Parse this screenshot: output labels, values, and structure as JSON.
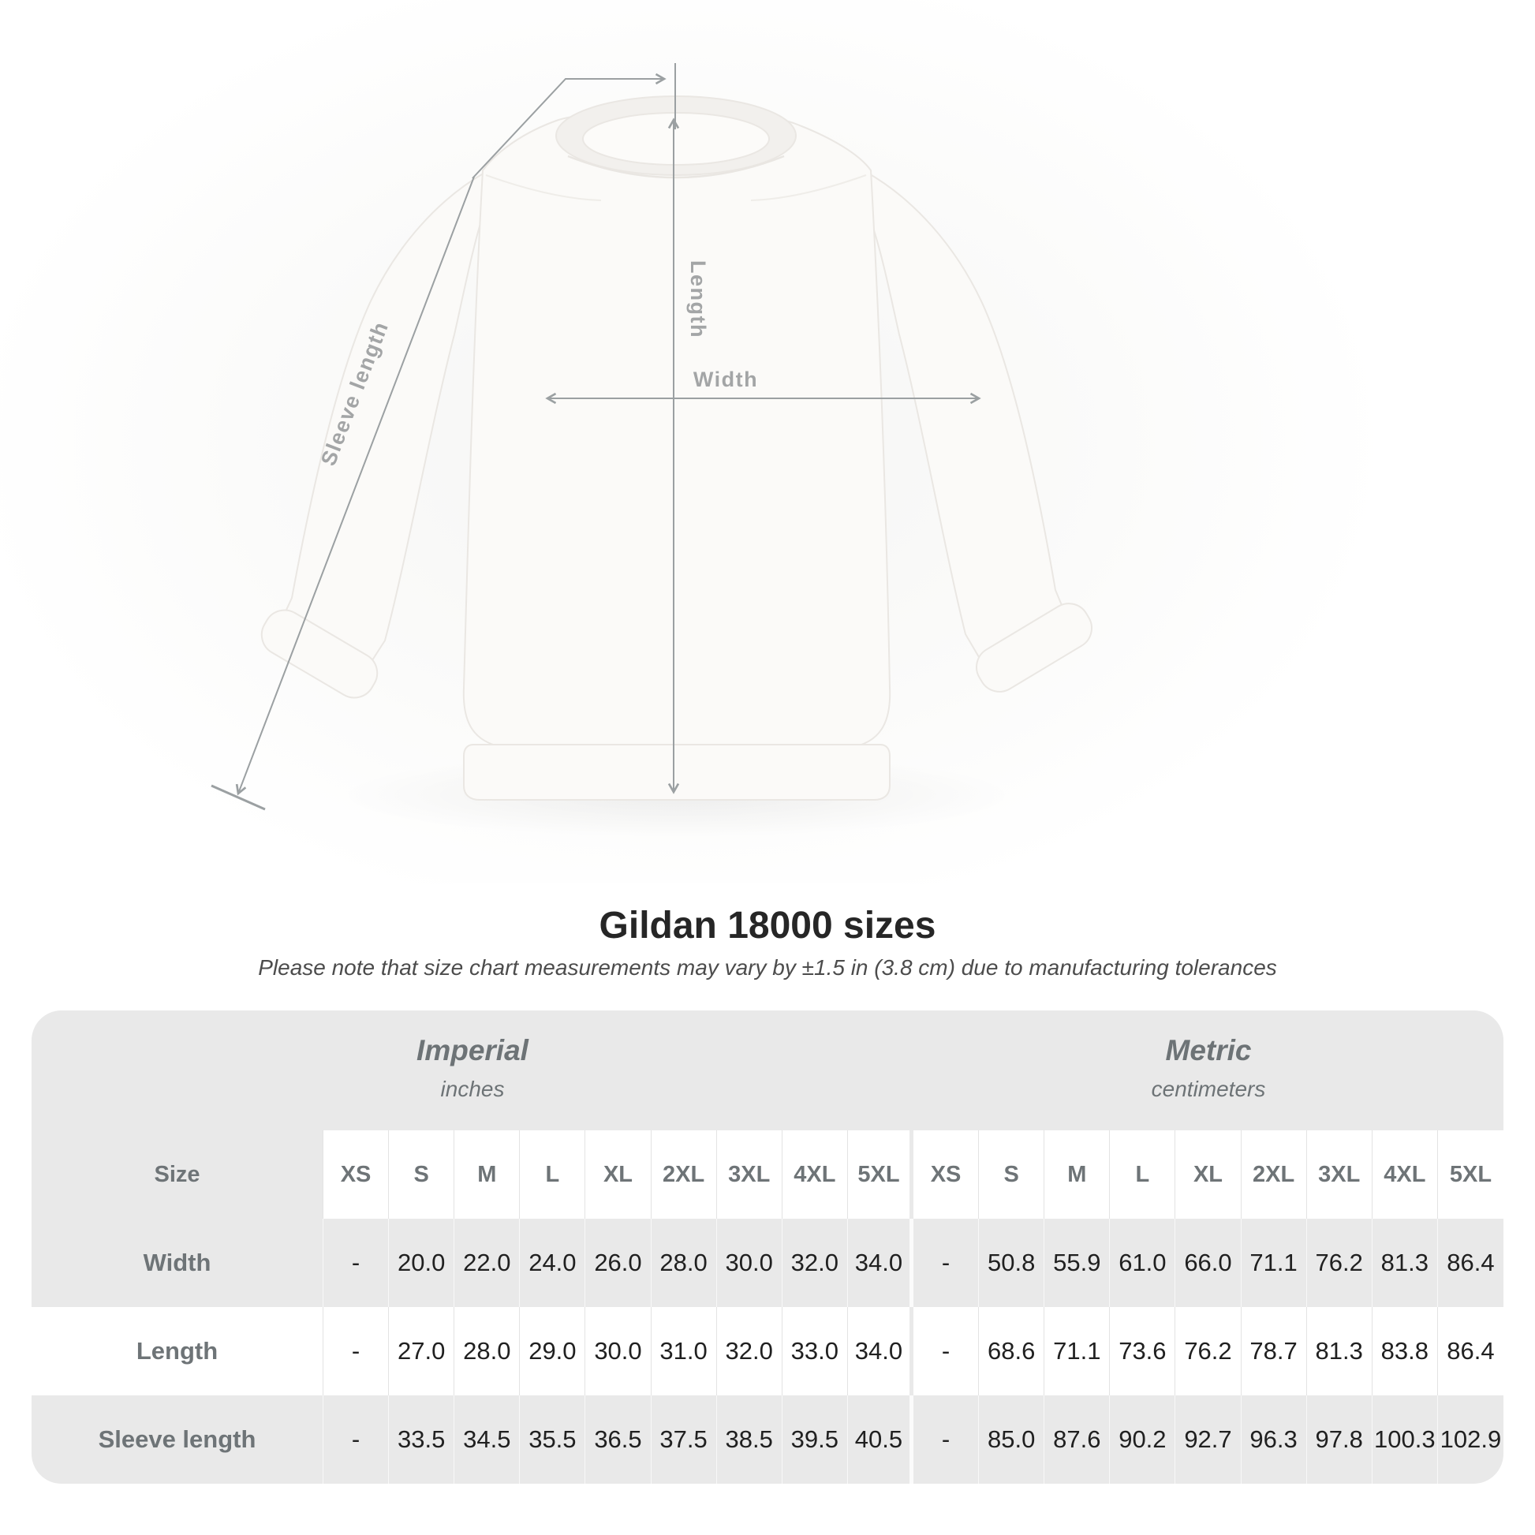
{
  "diagram": {
    "length_label": "Length",
    "width_label": "Width",
    "sleeve_label": "Sleeve length"
  },
  "title": "Gildan 18000 sizes",
  "note": "Please note that size chart measurements may vary by ±1.5 in (3.8 cm) due to manufacturing tolerances",
  "table": {
    "groups": [
      {
        "name": "Imperial",
        "unit": "inches"
      },
      {
        "name": "Metric",
        "unit": "centimeters"
      }
    ],
    "size_header": "Size",
    "sizes": [
      "XS",
      "S",
      "M",
      "L",
      "XL",
      "2XL",
      "3XL",
      "4XL",
      "5XL"
    ],
    "rows": [
      {
        "label": "Width",
        "imperial": [
          "-",
          "20.0",
          "22.0",
          "24.0",
          "26.0",
          "28.0",
          "30.0",
          "32.0",
          "34.0"
        ],
        "metric": [
          "-",
          "50.8",
          "55.9",
          "61.0",
          "66.0",
          "71.1",
          "76.2",
          "81.3",
          "86.4"
        ]
      },
      {
        "label": "Length",
        "imperial": [
          "-",
          "27.0",
          "28.0",
          "29.0",
          "30.0",
          "31.0",
          "32.0",
          "33.0",
          "34.0"
        ],
        "metric": [
          "-",
          "68.6",
          "71.1",
          "73.6",
          "76.2",
          "78.7",
          "81.3",
          "83.8",
          "86.4"
        ]
      },
      {
        "label": "Sleeve length",
        "imperial": [
          "-",
          "33.5",
          "34.5",
          "35.5",
          "36.5",
          "37.5",
          "38.5",
          "39.5",
          "40.5"
        ],
        "metric": [
          "-",
          "85.0",
          "87.6",
          "90.2",
          "92.7",
          "96.3",
          "97.8",
          "100.3",
          "102.9"
        ]
      }
    ]
  },
  "chart_data": {
    "type": "table",
    "title": "Gildan 18000 sizes",
    "columns": [
      "Size",
      "XS",
      "S",
      "M",
      "L",
      "XL",
      "2XL",
      "3XL",
      "4XL",
      "5XL"
    ],
    "imperial_inches": {
      "Width": [
        null,
        20.0,
        22.0,
        24.0,
        26.0,
        28.0,
        30.0,
        32.0,
        34.0
      ],
      "Length": [
        null,
        27.0,
        28.0,
        29.0,
        30.0,
        31.0,
        32.0,
        33.0,
        34.0
      ],
      "Sleeve length": [
        null,
        33.5,
        34.5,
        35.5,
        36.5,
        37.5,
        38.5,
        39.5,
        40.5
      ]
    },
    "metric_centimeters": {
      "Width": [
        null,
        50.8,
        55.9,
        61.0,
        66.0,
        71.1,
        76.2,
        81.3,
        86.4
      ],
      "Length": [
        null,
        68.6,
        71.1,
        73.6,
        76.2,
        78.7,
        81.3,
        83.8,
        86.4
      ],
      "Sleeve length": [
        null,
        85.0,
        87.6,
        90.2,
        92.7,
        96.3,
        97.8,
        100.3,
        102.9
      ]
    }
  },
  "colors": {
    "card_background": "#e9e9e9",
    "header_text": "#6e7477",
    "value_text": "#202020",
    "dimension_lines": "#9ba0a2",
    "title_text": "#262626"
  }
}
